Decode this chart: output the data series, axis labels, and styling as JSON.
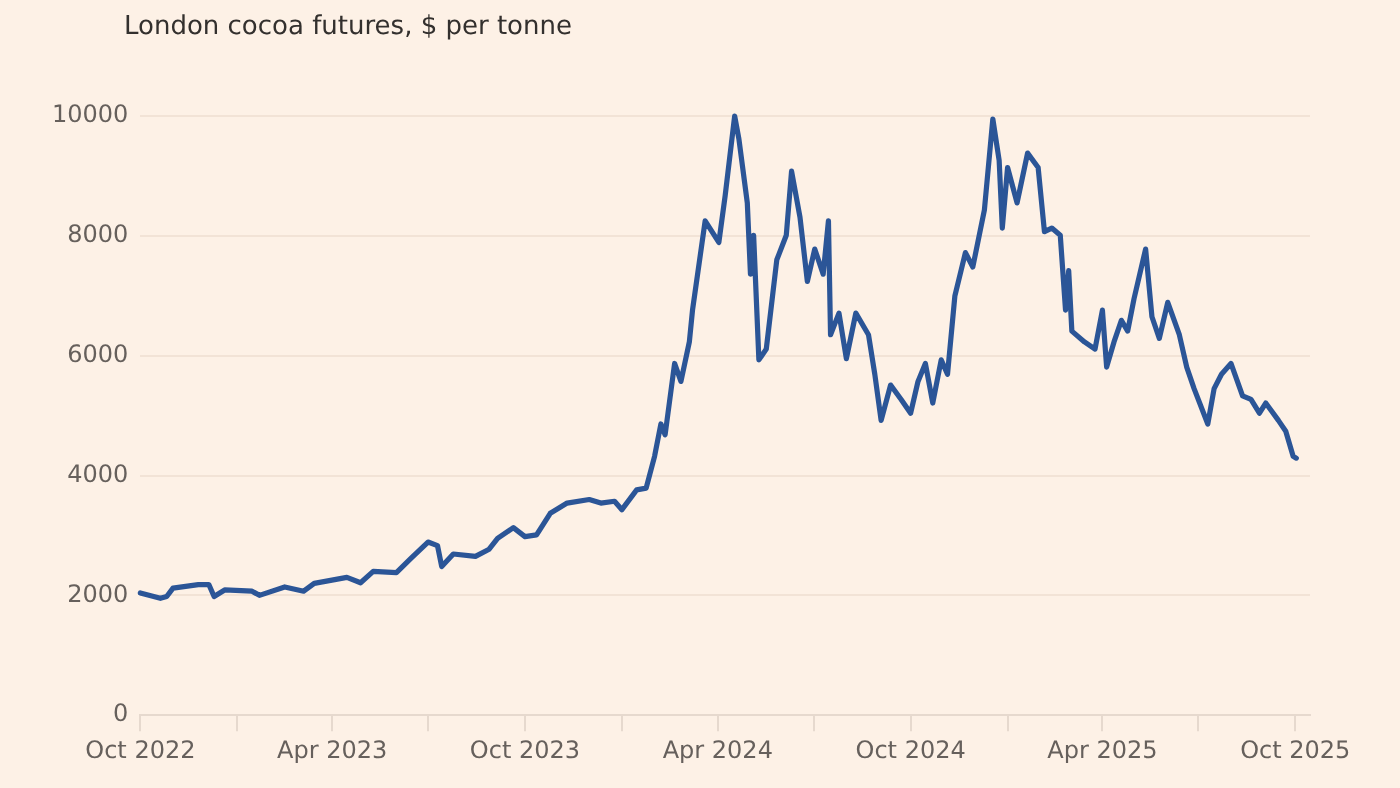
{
  "chart_data": {
    "type": "line",
    "title": "London cocoa futures, $ per tonne",
    "x": [
      "2022-10-01",
      "2022-10-20",
      "2022-10-26",
      "2022-11-01",
      "2022-11-25",
      "2022-12-05",
      "2022-12-10",
      "2022-12-20",
      "2023-01-15",
      "2023-01-22",
      "2023-02-15",
      "2023-03-05",
      "2023-03-15",
      "2023-04-15",
      "2023-04-28",
      "2023-05-10",
      "2023-06-01",
      "2023-06-15",
      "2023-07-01",
      "2023-07-10",
      "2023-07-14",
      "2023-07-25",
      "2023-08-15",
      "2023-08-28",
      "2023-09-05",
      "2023-09-20",
      "2023-10-01",
      "2023-10-12",
      "2023-10-25",
      "2023-11-10",
      "2023-12-01",
      "2023-12-12",
      "2023-12-25",
      "2024-01-01",
      "2024-01-15",
      "2024-01-24",
      "2024-02-01",
      "2024-02-07",
      "2024-02-11",
      "2024-02-20",
      "2024-02-26",
      "2024-03-05",
      "2024-03-08",
      "2024-03-20",
      "2024-04-02",
      "2024-04-08",
      "2024-04-17",
      "2024-04-21",
      "2024-04-29",
      "2024-05-02",
      "2024-05-05",
      "2024-05-10",
      "2024-05-17",
      "2024-05-27",
      "2024-06-05",
      "2024-06-10",
      "2024-06-18",
      "2024-06-25",
      "2024-07-02",
      "2024-07-10",
      "2024-07-15",
      "2024-07-17",
      "2024-07-25",
      "2024-08-01",
      "2024-08-10",
      "2024-08-22",
      "2024-08-28",
      "2024-09-03",
      "2024-09-12",
      "2024-09-22",
      "2024-10-01",
      "2024-10-08",
      "2024-10-15",
      "2024-10-22",
      "2024-10-30",
      "2024-11-05",
      "2024-11-12",
      "2024-11-22",
      "2024-11-29",
      "2024-12-10",
      "2024-12-18",
      "2024-12-24",
      "2024-12-27",
      "2025-01-01",
      "2025-01-10",
      "2025-01-20",
      "2025-01-30",
      "2025-02-05",
      "2025-02-12",
      "2025-02-20",
      "2025-02-25",
      "2025-02-28",
      "2025-03-03",
      "2025-03-15",
      "2025-03-25",
      "2025-04-01",
      "2025-04-05",
      "2025-04-12",
      "2025-04-19",
      "2025-04-25",
      "2025-05-01",
      "2025-05-12",
      "2025-05-18",
      "2025-05-25",
      "2025-06-02",
      "2025-06-13",
      "2025-06-20",
      "2025-06-27",
      "2025-07-10",
      "2025-07-16",
      "2025-07-23",
      "2025-08-01",
      "2025-08-12",
      "2025-08-20",
      "2025-08-28",
      "2025-09-03",
      "2025-09-15",
      "2025-09-22",
      "2025-09-29",
      "2025-10-02"
    ],
    "series": [
      {
        "color": "#2b5597",
        "values": [
          2040,
          1950,
          1980,
          2120,
          2180,
          2180,
          1980,
          2090,
          2070,
          2000,
          2140,
          2070,
          2200,
          2300,
          2210,
          2400,
          2380,
          2620,
          2890,
          2830,
          2480,
          2690,
          2650,
          2770,
          2950,
          3130,
          2980,
          3010,
          3370,
          3540,
          3600,
          3540,
          3570,
          3430,
          3760,
          3790,
          4320,
          4860,
          4680,
          5870,
          5570,
          6230,
          6760,
          8250,
          7890,
          8670,
          10000,
          9620,
          8550,
          7360,
          8010,
          5930,
          6110,
          7600,
          8010,
          9080,
          8310,
          7240,
          7780,
          7360,
          8250,
          6350,
          6710,
          5950,
          6710,
          6350,
          5690,
          4920,
          5510,
          5270,
          5040,
          5570,
          5870,
          5210,
          5930,
          5690,
          7000,
          7720,
          7480,
          8430,
          9950,
          9260,
          8130,
          9140,
          8550,
          9380,
          9140,
          8070,
          8130,
          8010,
          6760,
          7420,
          6410,
          6230,
          6110,
          6760,
          5810,
          6230,
          6590,
          6410,
          6950,
          7780,
          6650,
          6290,
          6890,
          6350,
          5810,
          5450,
          4860,
          5450,
          5690,
          5870,
          5330,
          5270,
          5040,
          5210,
          4920,
          4740,
          4320,
          4290
        ]
      }
    ],
    "xlim": [
      "2022-10-01",
      "2025-10-15"
    ],
    "xticks": [
      {
        "value": "2022-10-01",
        "label": "Oct 2022"
      },
      {
        "value": "2023-01-01",
        "label": null
      },
      {
        "value": "2023-04-01",
        "label": "Apr 2023"
      },
      {
        "value": "2023-07-01",
        "label": null
      },
      {
        "value": "2023-10-01",
        "label": "Oct 2023"
      },
      {
        "value": "2024-01-01",
        "label": null
      },
      {
        "value": "2024-04-01",
        "label": "Apr 2024"
      },
      {
        "value": "2024-07-01",
        "label": null
      },
      {
        "value": "2024-10-01",
        "label": "Oct 2024"
      },
      {
        "value": "2025-01-01",
        "label": null
      },
      {
        "value": "2025-04-01",
        "label": "Apr 2025"
      },
      {
        "value": "2025-07-01",
        "label": null
      },
      {
        "value": "2025-10-01",
        "label": "Oct 2025"
      }
    ],
    "ylim": [
      0,
      10000
    ],
    "yticks": [
      0,
      2000,
      4000,
      6000,
      8000,
      10000
    ],
    "grid": "y",
    "legend": false,
    "marker": "none",
    "line_style": "solid"
  }
}
